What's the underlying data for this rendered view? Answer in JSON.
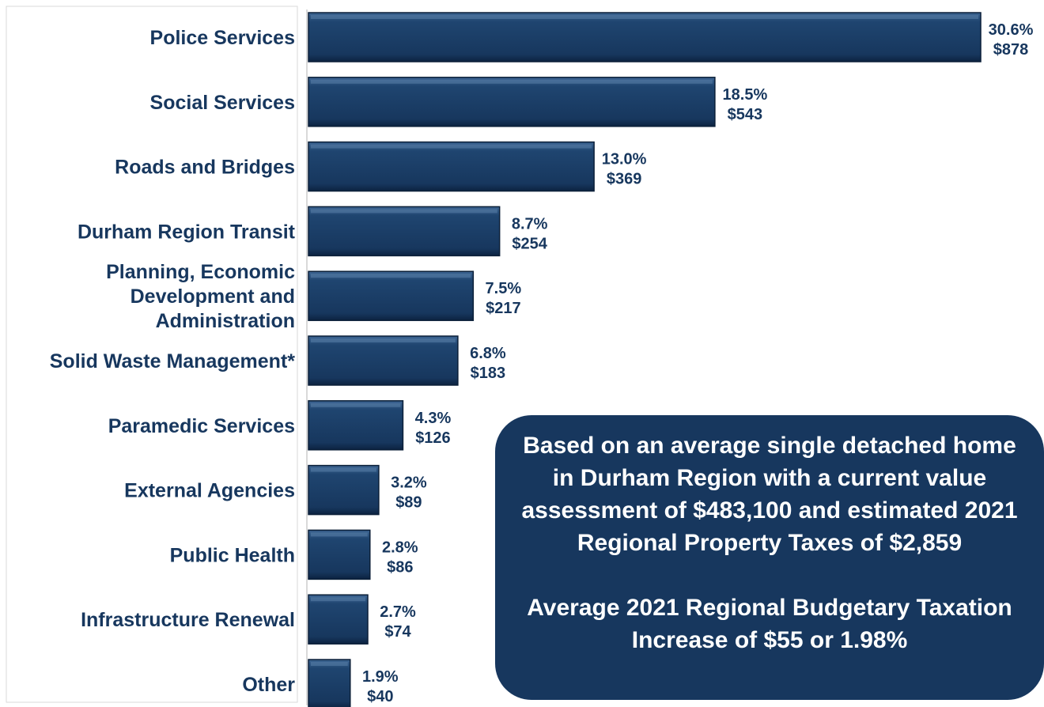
{
  "chart_data": {
    "type": "bar",
    "orientation": "horizontal",
    "categories": [
      "Police Services",
      "Social Services",
      "Roads and Bridges",
      "Durham Region Transit",
      "Planning, Economic Development and Administration",
      "Solid Waste Management*",
      "Paramedic Services",
      "External Agencies",
      "Public Health",
      "Infrastructure Renewal",
      "Other"
    ],
    "category_lines": [
      [
        "Police Services"
      ],
      [
        "Social Services"
      ],
      [
        "Roads and Bridges"
      ],
      [
        "Durham Region Transit"
      ],
      [
        "Planning, Economic",
        "Development and",
        "Administration"
      ],
      [
        "Solid Waste Management*"
      ],
      [
        "Paramedic Services"
      ],
      [
        "External Agencies"
      ],
      [
        "Public Health"
      ],
      [
        "Infrastructure Renewal"
      ],
      [
        "Other"
      ]
    ],
    "percent_values": [
      30.6,
      18.5,
      13.0,
      8.7,
      7.5,
      6.8,
      4.3,
      3.2,
      2.8,
      2.7,
      1.9
    ],
    "dollar_values": [
      878,
      543,
      369,
      254,
      217,
      183,
      126,
      89,
      86,
      74,
      40
    ],
    "percent_labels": [
      "30.6%",
      "18.5%",
      "13.0%",
      "8.7%",
      "7.5%",
      "6.8%",
      "4.3%",
      "3.2%",
      "2.8%",
      "2.7%",
      "1.9%"
    ],
    "dollar_labels": [
      "$878",
      "$543",
      "$369",
      "$254",
      "$217",
      "$183",
      "$126",
      "$89",
      "$86",
      "$74",
      "$40"
    ],
    "grid": false,
    "legend": "none",
    "bar_color": "#17375e"
  },
  "callout": {
    "line1": "Based on an average single detached home in Durham Region with a current value assessment of $483,100 and estimated 2021 Regional Property Taxes of $2,859",
    "line2": "Average 2021 Regional Budgetary Taxation Increase of $55 or 1.98%"
  },
  "colors": {
    "bar": "#17375e",
    "text": "#17375e",
    "callout_bg": "#17375e",
    "callout_text": "#ffffff"
  }
}
